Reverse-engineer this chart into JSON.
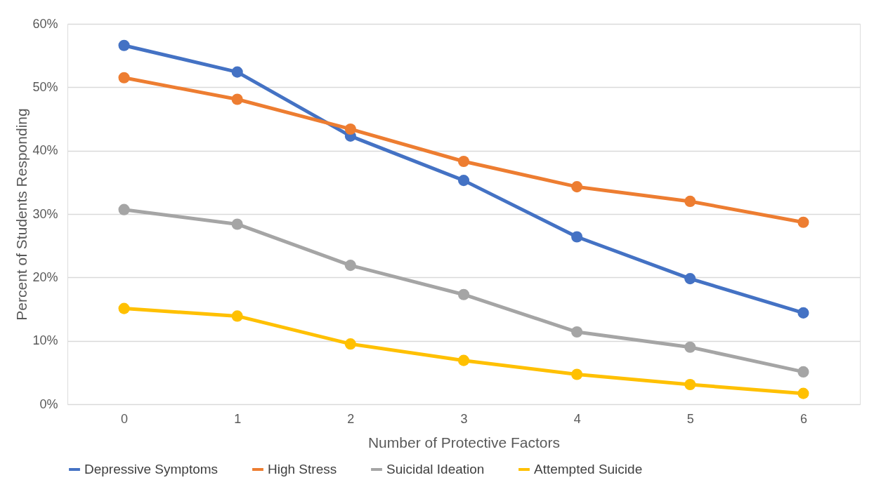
{
  "chart_data": {
    "type": "line",
    "xlabel": "Number of Protective Factors",
    "ylabel": "Percent of Students Responding",
    "categories": [
      "0",
      "1",
      "2",
      "3",
      "4",
      "5",
      "6"
    ],
    "series": [
      {
        "name": "Depressive Symptoms",
        "color": "#4472c4",
        "values": [
          56.6,
          52.4,
          42.3,
          35.3,
          26.4,
          19.8,
          14.4
        ]
      },
      {
        "name": "High Stress",
        "color": "#ed7d31",
        "values": [
          51.5,
          48.1,
          43.4,
          38.3,
          34.3,
          32.0,
          28.7
        ]
      },
      {
        "name": "Suicidal Ideation",
        "color": "#a5a5a5",
        "values": [
          30.7,
          28.4,
          21.9,
          17.3,
          11.4,
          9.0,
          5.1
        ]
      },
      {
        "name": "Attempted Suicide",
        "color": "#ffc000",
        "values": [
          15.1,
          13.9,
          9.5,
          6.9,
          4.7,
          3.1,
          1.7
        ]
      }
    ],
    "ylim": [
      0,
      60
    ],
    "yticks": [
      {
        "value": 0,
        "label": "0%"
      },
      {
        "value": 10,
        "label": "10%"
      },
      {
        "value": 20,
        "label": "20%"
      },
      {
        "value": 30,
        "label": "30%"
      },
      {
        "value": 40,
        "label": "40%"
      },
      {
        "value": 50,
        "label": "50%"
      },
      {
        "value": 60,
        "label": "60%"
      }
    ],
    "grid": "y",
    "legend": "bottom",
    "marker": "circle",
    "line_style": "solid"
  }
}
